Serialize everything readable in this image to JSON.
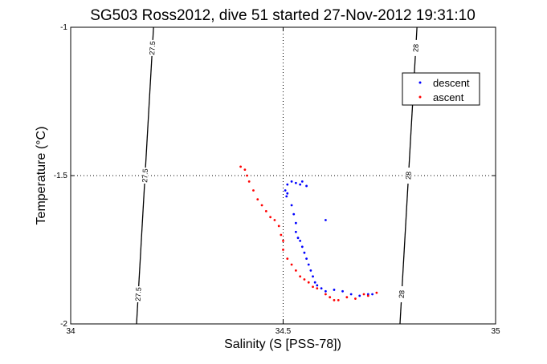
{
  "chart_data": {
    "type": "scatter",
    "title": "SG503 Ross2012, dive 51 started 27-Nov-2012 19:31:10",
    "xlabel": "Salinity (S [PSS-78])",
    "ylabel": "Temperature (°C)",
    "xlim": [
      34,
      35
    ],
    "ylim": [
      -2,
      -1
    ],
    "x_ticks": [
      "34",
      "34.5",
      "35"
    ],
    "y_ticks": [
      "-1",
      "-1.5",
      "-2"
    ],
    "grid": "dotted lines at x = 34.5 and y = -1.5",
    "legend_position": "top-right",
    "contours": [
      {
        "label": "27.5",
        "points": [
          [
            34.155,
            -2.0
          ],
          [
            34.195,
            -1.0
          ]
        ]
      },
      {
        "label": "28",
        "points": [
          [
            34.775,
            -2.0
          ],
          [
            34.815,
            -1.0
          ]
        ]
      }
    ],
    "series": [
      {
        "name": "descent",
        "color": "#0000ff",
        "points": [
          [
            34.505,
            -1.55
          ],
          [
            34.51,
            -1.56
          ],
          [
            34.508,
            -1.57
          ],
          [
            34.51,
            -1.53
          ],
          [
            34.52,
            -1.52
          ],
          [
            34.53,
            -1.525
          ],
          [
            34.54,
            -1.53
          ],
          [
            34.545,
            -1.52
          ],
          [
            34.555,
            -1.535
          ],
          [
            34.6,
            -1.65
          ],
          [
            34.52,
            -1.6
          ],
          [
            34.525,
            -1.63
          ],
          [
            34.53,
            -1.66
          ],
          [
            34.53,
            -1.69
          ],
          [
            34.535,
            -1.71
          ],
          [
            34.54,
            -1.72
          ],
          [
            34.545,
            -1.74
          ],
          [
            34.55,
            -1.76
          ],
          [
            34.555,
            -1.78
          ],
          [
            34.56,
            -1.8
          ],
          [
            34.565,
            -1.82
          ],
          [
            34.57,
            -1.84
          ],
          [
            34.575,
            -1.86
          ],
          [
            34.58,
            -1.87
          ],
          [
            34.59,
            -1.88
          ],
          [
            34.6,
            -1.89
          ],
          [
            34.62,
            -1.885
          ],
          [
            34.64,
            -1.89
          ],
          [
            34.66,
            -1.9
          ],
          [
            34.68,
            -1.905
          ],
          [
            34.7,
            -1.9
          ],
          [
            34.71,
            -1.9
          ]
        ]
      },
      {
        "name": "ascent",
        "color": "#ff0000",
        "points": [
          [
            34.4,
            -1.47
          ],
          [
            34.41,
            -1.48
          ],
          [
            34.415,
            -1.5
          ],
          [
            34.42,
            -1.52
          ],
          [
            34.43,
            -1.55
          ],
          [
            34.44,
            -1.58
          ],
          [
            34.45,
            -1.6
          ],
          [
            34.46,
            -1.62
          ],
          [
            34.47,
            -1.64
          ],
          [
            34.48,
            -1.65
          ],
          [
            34.49,
            -1.67
          ],
          [
            34.495,
            -1.7
          ],
          [
            34.5,
            -1.72
          ],
          [
            34.5,
            -1.75
          ],
          [
            34.51,
            -1.78
          ],
          [
            34.52,
            -1.8
          ],
          [
            34.53,
            -1.82
          ],
          [
            34.54,
            -1.84
          ],
          [
            34.55,
            -1.85
          ],
          [
            34.56,
            -1.86
          ],
          [
            34.57,
            -1.875
          ],
          [
            34.58,
            -1.88
          ],
          [
            34.6,
            -1.9
          ],
          [
            34.61,
            -1.91
          ],
          [
            34.62,
            -1.92
          ],
          [
            34.63,
            -1.92
          ],
          [
            34.65,
            -1.91
          ],
          [
            34.67,
            -1.915
          ],
          [
            34.69,
            -1.9
          ],
          [
            34.7,
            -1.905
          ],
          [
            34.72,
            -1.895
          ]
        ]
      }
    ]
  }
}
